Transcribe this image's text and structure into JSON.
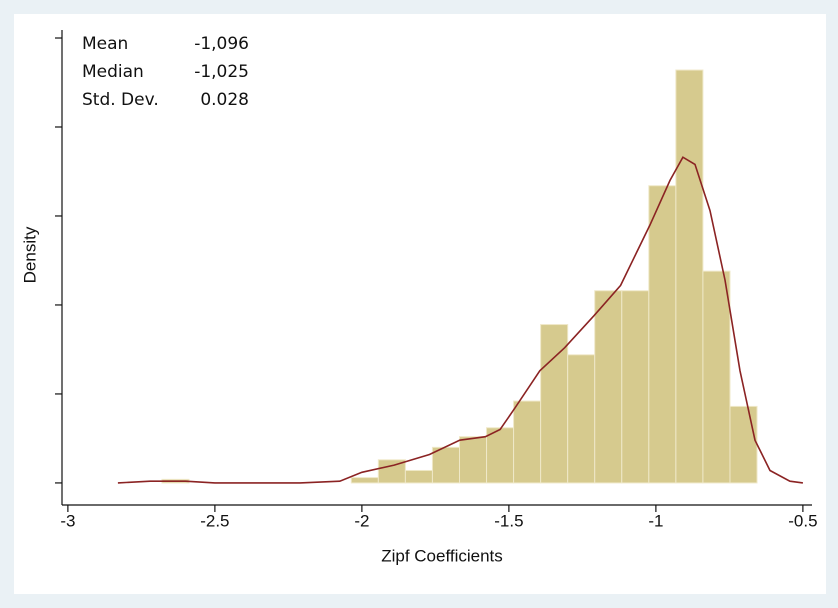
{
  "chart_data": {
    "type": "histogram",
    "xlabel": "Zipf Coefficients",
    "ylabel": "Density",
    "stats": [
      {
        "label": "Mean",
        "value": "-1,096"
      },
      {
        "label": "Median",
        "value": "-1,025"
      },
      {
        "label": "Std. Dev.",
        "value": "0.028"
      }
    ],
    "bins": [
      -2.68,
      -2.588,
      -2.496,
      -2.404,
      -2.312,
      -2.22,
      -2.128,
      -2.036,
      -1.944,
      -1.852,
      -1.76,
      -1.668,
      -1.576,
      -1.484,
      -1.392,
      -1.3,
      -1.208,
      -1.116,
      -1.024,
      -0.932,
      -0.84,
      -0.748,
      -0.656
    ],
    "values": [
      0.02,
      0,
      0,
      0,
      0,
      0,
      0,
      0.03,
      0.13,
      0.07,
      0.2,
      0.26,
      0.31,
      0.46,
      0.89,
      0.72,
      1.08,
      1.08,
      1.67,
      2.32,
      1.19,
      0.43
    ],
    "color": "#d6ca8e",
    "kde": {
      "color": "#8b2323",
      "x": [
        -2.83,
        -2.72,
        -2.6,
        -2.5,
        -2.21,
        -2.075,
        -2.0,
        -1.89,
        -1.77,
        -1.667,
        -1.58,
        -1.53,
        -1.48,
        -1.395,
        -1.31,
        -1.21,
        -1.12,
        -1.02,
        -0.952,
        -0.908,
        -0.867,
        -0.816,
        -0.765,
        -0.714,
        -0.663,
        -0.612,
        -0.544,
        -0.5
      ],
      "values": [
        0,
        0.01,
        0.01,
        0,
        0,
        0.01,
        0.06,
        0.1,
        0.16,
        0.24,
        0.26,
        0.3,
        0.42,
        0.63,
        0.76,
        0.94,
        1.11,
        1.45,
        1.7,
        1.83,
        1.79,
        1.53,
        1.14,
        0.63,
        0.24,
        0.07,
        0.01,
        0
      ]
    },
    "xlim": [
      -3.02,
      -0.469
    ],
    "xticks": [
      -3,
      -2.5,
      -2,
      -1.5,
      -1,
      -0.5
    ],
    "ylim": [
      -0.124,
      2.545
    ],
    "yticks": [
      0,
      0.5,
      1,
      1.5,
      2,
      2.5
    ]
  }
}
